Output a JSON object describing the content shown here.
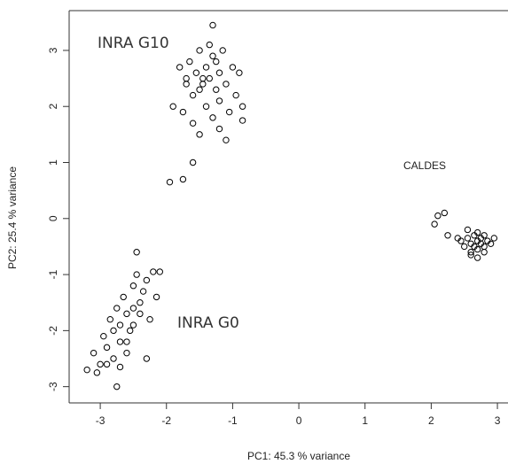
{
  "chart_data": {
    "type": "scatter",
    "xlabel": "PC1: 45.3 % variance",
    "ylabel": "PC2: 25.4 % variance",
    "xlim": [
      -3.47,
      3.16
    ],
    "ylim": [
      -3.29,
      3.71
    ],
    "xticks": [
      -3,
      -2,
      -1,
      0,
      1,
      2,
      3
    ],
    "yticks": [
      -3,
      -2,
      -1,
      0,
      1,
      2,
      3
    ],
    "series": [
      {
        "name": "INRA G10",
        "color": "#000000",
        "x": [
          -1.9,
          -1.8,
          -1.75,
          -1.7,
          -1.65,
          -1.6,
          -1.55,
          -1.5,
          -1.5,
          -1.45,
          -1.4,
          -1.4,
          -1.35,
          -1.3,
          -1.3,
          -1.25,
          -1.2,
          -1.2,
          -1.15,
          -1.1,
          -1.05,
          -1.0,
          -0.95,
          -0.9,
          -0.85,
          -1.6,
          -1.45,
          -1.35,
          -1.25,
          -1.5,
          -1.7,
          -1.1,
          -1.95,
          -1.75,
          -1.3,
          -1.6,
          -1.2,
          -0.85
        ],
        "values": [
          2.0,
          2.7,
          1.9,
          2.4,
          2.8,
          2.2,
          2.6,
          1.5,
          3.0,
          2.4,
          2.7,
          2.0,
          2.5,
          2.9,
          1.8,
          2.3,
          2.6,
          2.1,
          3.0,
          2.4,
          1.9,
          2.7,
          2.2,
          2.6,
          2.0,
          1.7,
          2.5,
          3.1,
          2.8,
          2.3,
          2.5,
          1.4,
          0.65,
          0.7,
          3.45,
          1.0,
          1.6,
          1.75
        ]
      },
      {
        "name": "CALDES",
        "color": "#000000",
        "x": [
          2.45,
          2.5,
          2.55,
          2.6,
          2.6,
          2.65,
          2.65,
          2.7,
          2.7,
          2.7,
          2.75,
          2.75,
          2.8,
          2.8,
          2.85,
          2.9,
          2.95,
          2.6,
          2.7,
          2.8,
          2.1,
          2.2,
          2.05,
          2.25,
          2.4,
          2.55
        ],
        "values": [
          -0.4,
          -0.5,
          -0.35,
          -0.45,
          -0.6,
          -0.3,
          -0.5,
          -0.4,
          -0.55,
          -0.25,
          -0.45,
          -0.35,
          -0.5,
          -0.6,
          -0.4,
          -0.45,
          -0.35,
          -0.65,
          -0.7,
          -0.3,
          0.05,
          0.1,
          -0.1,
          -0.3,
          -0.35,
          -0.2
        ]
      },
      {
        "name": "INRA G0",
        "color": "#000000",
        "x": [
          -3.2,
          -3.1,
          -3.0,
          -2.95,
          -2.9,
          -2.85,
          -2.8,
          -2.75,
          -2.7,
          -2.7,
          -2.65,
          -2.6,
          -2.6,
          -2.55,
          -2.5,
          -2.5,
          -2.45,
          -2.4,
          -2.35,
          -2.3,
          -2.25,
          -2.2,
          -2.15,
          -2.1,
          -2.9,
          -2.8,
          -2.7,
          -2.6,
          -2.5,
          -2.4,
          -2.3,
          -2.45,
          -2.75,
          -3.05
        ],
        "values": [
          -2.7,
          -2.4,
          -2.6,
          -2.1,
          -2.3,
          -1.8,
          -2.5,
          -1.6,
          -2.2,
          -1.9,
          -1.4,
          -2.4,
          -1.7,
          -2.0,
          -1.2,
          -1.6,
          -1.0,
          -1.5,
          -1.3,
          -1.1,
          -1.8,
          -0.95,
          -1.4,
          -0.95,
          -2.6,
          -2.0,
          -2.65,
          -2.2,
          -1.9,
          -1.7,
          -2.5,
          -0.6,
          -3.0,
          -2.75
        ]
      }
    ]
  }
}
